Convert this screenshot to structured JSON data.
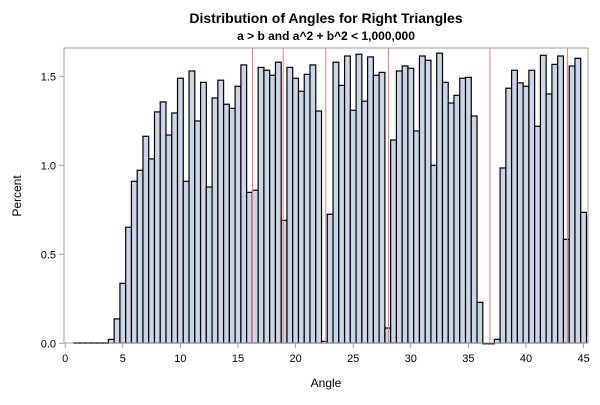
{
  "chart_data": {
    "type": "bar",
    "title": "Distribution of Angles for Right Triangles",
    "subtitle": "a > b and a^2 + b^2 < 1,000,000",
    "xlabel": "Angle",
    "ylabel": "Percent",
    "xlim": [
      0,
      45.5
    ],
    "ylim": [
      0,
      1.65
    ],
    "x_ticks": [
      0,
      5,
      10,
      15,
      20,
      25,
      30,
      35,
      40,
      45
    ],
    "y_ticks": [
      "0.0",
      "0.5",
      "1.0",
      "1.5"
    ],
    "y_tick_values": [
      0,
      0.5,
      1.0,
      1.5
    ],
    "bin_width": 0.5,
    "bin_midpoints_start": 1.0,
    "values": [
      0.003,
      0.003,
      0.003,
      0.003,
      0.003,
      0.003,
      0.022,
      0.137,
      0.337,
      0.652,
      0.91,
      0.972,
      1.163,
      1.036,
      1.3,
      1.356,
      1.17,
      1.294,
      1.489,
      0.91,
      1.53,
      1.249,
      1.466,
      0.878,
      1.378,
      1.478,
      1.343,
      1.32,
      1.444,
      1.564,
      0.848,
      0.86,
      1.55,
      1.534,
      1.506,
      1.579,
      0.691,
      1.55,
      1.489,
      1.416,
      1.511,
      1.564,
      1.305,
      0.011,
      0.725,
      1.579,
      1.449,
      1.614,
      1.309,
      1.624,
      1.36,
      1.609,
      1.506,
      1.522,
      0.086,
      1.142,
      1.53,
      1.558,
      1.545,
      1.193,
      1.614,
      1.59,
      1.0,
      1.63,
      1.466,
      1.35,
      1.393,
      1.489,
      1.494,
      1.277,
      0.23,
      0,
      0,
      0.022,
      0.985,
      1.433,
      1.534,
      1.463,
      1.444,
      1.534,
      1.219,
      1.618,
      1.401,
      1.567,
      1.614,
      0.584,
      1.558,
      1.601,
      0.736
    ],
    "reference_lines": [
      16.26,
      18.92,
      22.62,
      28.07,
      36.87,
      43.6
    ],
    "colors": {
      "bar_fill": "#cbd5e5",
      "bar_stroke": "#000000",
      "reference_line": "#f47c7c",
      "frame": "#a0a0a0"
    },
    "grid": false
  }
}
